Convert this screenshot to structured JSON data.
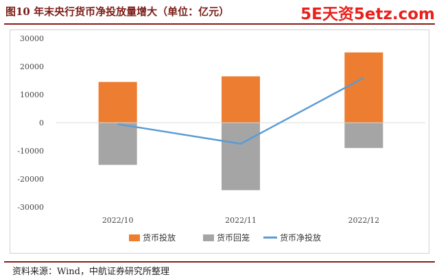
{
  "header": {
    "title": "图10  年末央行货币净投放量增大（单位：亿元）",
    "watermark": "5E天资5etz.com"
  },
  "source": "资料来源：Wind，中航证券研究所整理",
  "colors": {
    "injection": "#ed7d31",
    "withdrawal": "#a5a5a5",
    "net": "#5b9bd5"
  },
  "chart_data": {
    "type": "bar",
    "categories": [
      "2022/10",
      "2022/11",
      "2022/12"
    ],
    "series": [
      {
        "name": "货币投放",
        "kind": "bar",
        "values": [
          14500,
          16500,
          25000
        ]
      },
      {
        "name": "货币回笼",
        "kind": "bar",
        "values": [
          -15000,
          -24000,
          -9000
        ]
      },
      {
        "name": "货币净投放",
        "kind": "line",
        "values": [
          -500,
          -7500,
          16000
        ]
      }
    ],
    "yticks": [
      30000,
      20000,
      10000,
      0,
      -10000,
      -20000,
      -30000
    ],
    "ylim": [
      -30000,
      30000
    ],
    "title": "",
    "xlabel": "",
    "ylabel": "",
    "grid": false,
    "legend_position": "bottom"
  }
}
